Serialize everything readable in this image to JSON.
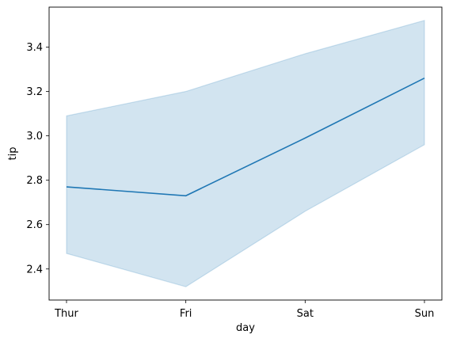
{
  "chart_data": {
    "type": "line",
    "xlabel": "day",
    "ylabel": "tip",
    "categories": [
      "Thur",
      "Fri",
      "Sat",
      "Sun"
    ],
    "series": [
      {
        "values": [
          2.77,
          2.73,
          2.99,
          3.26
        ],
        "ci_lower": [
          2.47,
          2.32,
          2.66,
          2.96
        ],
        "ci_upper": [
          3.09,
          3.2,
          3.37,
          3.52
        ]
      }
    ],
    "ylim": [
      2.26,
      3.58
    ],
    "yticks": [
      "2.4",
      "2.6",
      "2.8",
      "3.0",
      "3.2",
      "3.4"
    ],
    "grid": false,
    "colors": {
      "line": "#1f77b4",
      "band": "#1f77b4"
    }
  }
}
